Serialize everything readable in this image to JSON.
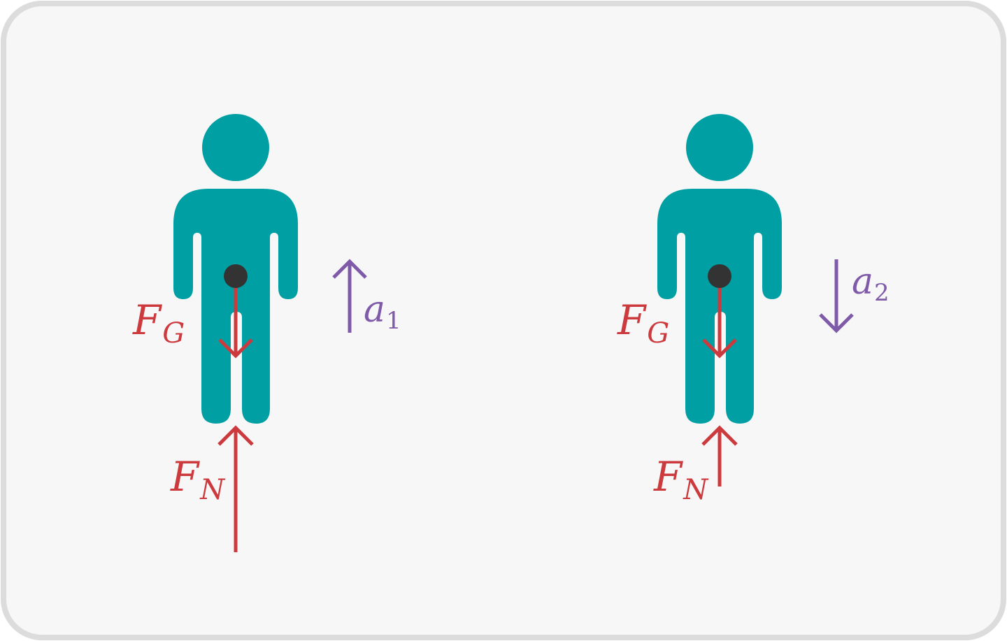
{
  "colors": {
    "background": "#f7f7f8",
    "border": "#dcdcdc",
    "person": "#009fa3",
    "force": "#cc3a3e",
    "acceleration": "#7e5aa8",
    "center_of_mass": "#333333"
  },
  "left_scenario": {
    "gravity_label": {
      "main": "F",
      "sub": "G"
    },
    "normal_label": {
      "main": "F",
      "sub": "N"
    },
    "acceleration_label": {
      "main": "a",
      "sub": "1"
    },
    "acceleration_direction": "up"
  },
  "right_scenario": {
    "gravity_label": {
      "main": "F",
      "sub": "G"
    },
    "normal_label": {
      "main": "F",
      "sub": "N"
    },
    "acceleration_label": {
      "main": "a",
      "sub": "2"
    },
    "acceleration_direction": "down"
  }
}
